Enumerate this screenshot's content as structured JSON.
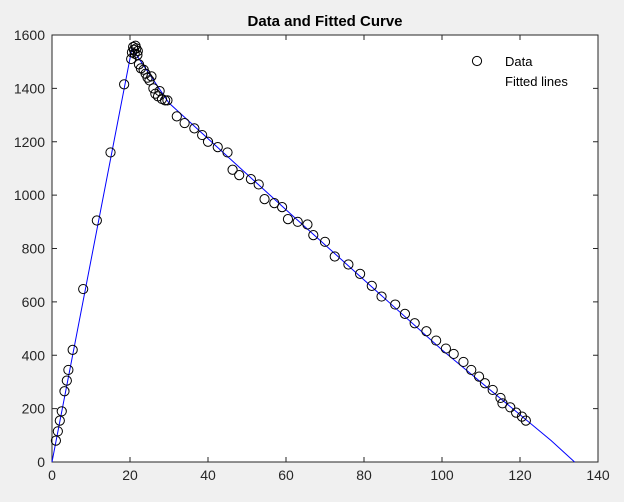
{
  "figure": {
    "background": "#f0f0f0",
    "axes_background": "#ffffff"
  },
  "chart_data": {
    "type": "scatter",
    "title": "Data and Fitted Curve",
    "xlabel": "",
    "ylabel": "",
    "xlim": [
      0,
      140
    ],
    "ylim": [
      0,
      1600
    ],
    "xticks": [
      "0",
      "20",
      "40",
      "60",
      "80",
      "100",
      "120",
      "140"
    ],
    "yticks": [
      "0",
      "200",
      "400",
      "600",
      "800",
      "1000",
      "1200",
      "1400",
      "1600"
    ],
    "grid": false,
    "legend_position": "top-right",
    "series": [
      {
        "name": "Data",
        "marker": "circle",
        "marker_color": "#000000",
        "points": [
          [
            1,
            80
          ],
          [
            1.5,
            115
          ],
          [
            2,
            155
          ],
          [
            2.5,
            190
          ],
          [
            3.2,
            265
          ],
          [
            3.8,
            305
          ],
          [
            4.2,
            345
          ],
          [
            5.3,
            420
          ],
          [
            8,
            648
          ],
          [
            11.5,
            905
          ],
          [
            15,
            1160
          ],
          [
            18.5,
            1415
          ],
          [
            20.3,
            1510
          ],
          [
            20.5,
            1535
          ],
          [
            20.8,
            1555
          ],
          [
            21.0,
            1545
          ],
          [
            21.2,
            1530
          ],
          [
            21.4,
            1560
          ],
          [
            21.6,
            1550
          ],
          [
            21.9,
            1525
          ],
          [
            22.0,
            1540
          ],
          [
            22.3,
            1490
          ],
          [
            22.8,
            1475
          ],
          [
            23.5,
            1470
          ],
          [
            24.0,
            1455
          ],
          [
            24.5,
            1440
          ],
          [
            25.0,
            1430
          ],
          [
            25.5,
            1445
          ],
          [
            26.0,
            1400
          ],
          [
            26.5,
            1380
          ],
          [
            27.2,
            1370
          ],
          [
            27.6,
            1390
          ],
          [
            28.2,
            1360
          ],
          [
            29.0,
            1355
          ],
          [
            29.6,
            1355
          ],
          [
            32,
            1295
          ],
          [
            34,
            1270
          ],
          [
            36.5,
            1250
          ],
          [
            38.5,
            1225
          ],
          [
            40,
            1200
          ],
          [
            42.5,
            1180
          ],
          [
            45,
            1160
          ],
          [
            46.3,
            1095
          ],
          [
            48,
            1075
          ],
          [
            51,
            1060
          ],
          [
            53,
            1040
          ],
          [
            54.5,
            985
          ],
          [
            57,
            970
          ],
          [
            59,
            955
          ],
          [
            60.5,
            910
          ],
          [
            63,
            900
          ],
          [
            65.5,
            890
          ],
          [
            67,
            850
          ],
          [
            70,
            825
          ],
          [
            72.5,
            770
          ],
          [
            76,
            740
          ],
          [
            79,
            705
          ],
          [
            82,
            660
          ],
          [
            84.5,
            620
          ],
          [
            88,
            590
          ],
          [
            90.5,
            555
          ],
          [
            93,
            520
          ],
          [
            96,
            490
          ],
          [
            98.5,
            455
          ],
          [
            101,
            425
          ],
          [
            103,
            405
          ],
          [
            105.5,
            375
          ],
          [
            107.5,
            345
          ],
          [
            109.5,
            320
          ],
          [
            111,
            295
          ],
          [
            113,
            270
          ],
          [
            115,
            240
          ],
          [
            115.5,
            220
          ],
          [
            117.5,
            205
          ],
          [
            119,
            185
          ],
          [
            120.5,
            170
          ],
          [
            121.5,
            155
          ]
        ]
      },
      {
        "name": "Fitted lines",
        "line_color": "#0000ff",
        "points": [
          [
            0,
            0
          ],
          [
            20.5,
            1550
          ],
          [
            30,
            1345
          ],
          [
            60,
            945
          ],
          [
            100,
            420
          ],
          [
            128,
            80
          ],
          [
            134,
            0
          ]
        ]
      }
    ]
  }
}
